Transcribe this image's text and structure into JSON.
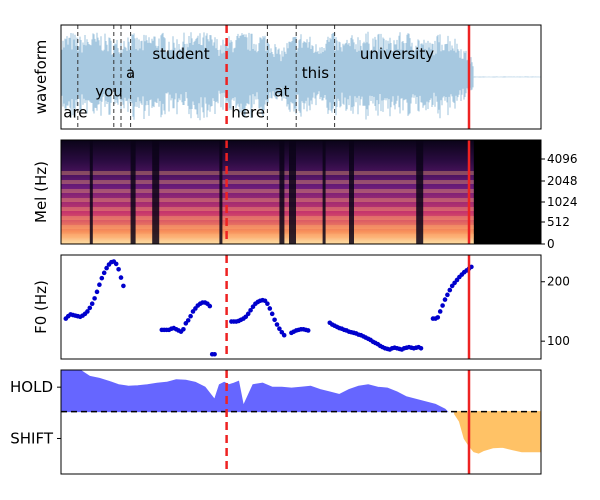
{
  "chart_data": [
    {
      "type": "area",
      "panel": "waveform",
      "ylabel": "waveform",
      "series_color": "#a6c8e0",
      "words": [
        {
          "text": "are",
          "t": 0.03
        },
        {
          "text": "you",
          "t": 0.1
        },
        {
          "text": "a",
          "t": 0.145
        },
        {
          "text": "student",
          "t": 0.25
        },
        {
          "text": "here",
          "t": 0.39
        },
        {
          "text": "at",
          "t": 0.46
        },
        {
          "text": "this",
          "t": 0.53
        },
        {
          "text": "university",
          "t": 0.7
        }
      ],
      "word_boundaries": [
        0.035,
        0.11,
        0.125,
        0.145,
        0.43,
        0.49,
        0.57
      ],
      "current_marker": 0.345,
      "end_marker": 0.85
    },
    {
      "type": "heatmap",
      "panel": "mel",
      "ylabel": "Mel (Hz)",
      "ytick_labels": [
        "0",
        "512",
        "1024",
        "2048",
        "4096"
      ],
      "speech_end": 0.86,
      "current_marker": 0.345,
      "end_marker": 0.85
    },
    {
      "type": "scatter",
      "panel": "f0",
      "ylabel": "F0 (Hz)",
      "ylim": [
        70,
        245
      ],
      "ytick_labels": [
        "100",
        "200"
      ],
      "point_color": "#0000cc",
      "segments": [
        {
          "t": [
            0.01,
            0.015,
            0.02,
            0.025,
            0.03,
            0.035,
            0.04,
            0.045,
            0.05,
            0.055,
            0.06,
            0.065,
            0.07,
            0.075,
            0.08,
            0.085,
            0.09,
            0.095,
            0.1,
            0.105,
            0.11,
            0.115,
            0.12,
            0.125,
            0.13
          ],
          "f0": [
            138,
            142,
            145,
            144,
            143,
            142,
            141,
            143,
            146,
            150,
            156,
            163,
            172,
            183,
            195,
            206,
            215,
            223,
            229,
            233,
            234,
            230,
            221,
            207,
            193
          ]
        },
        {
          "t": [
            0.21,
            0.215,
            0.22,
            0.225,
            0.23,
            0.235,
            0.24,
            0.245,
            0.25,
            0.255,
            0.26,
            0.265,
            0.27,
            0.275,
            0.28,
            0.285,
            0.29,
            0.295,
            0.3,
            0.305,
            0.31,
            0.315,
            0.32
          ],
          "f0": [
            119,
            119,
            119,
            119,
            121,
            122,
            120,
            118,
            116,
            120,
            130,
            135,
            142,
            150,
            155,
            160,
            163,
            165,
            165,
            163,
            159,
            78,
            78
          ]
        },
        {
          "t": [
            0.355,
            0.36,
            0.365,
            0.37,
            0.375,
            0.38,
            0.385,
            0.39,
            0.395,
            0.4,
            0.405,
            0.41,
            0.415,
            0.42,
            0.425,
            0.43,
            0.435,
            0.44,
            0.445,
            0.45,
            0.455,
            0.46,
            0.465
          ],
          "f0": [
            133,
            133,
            133,
            134,
            136,
            138,
            141,
            146,
            152,
            158,
            163,
            166,
            168,
            169,
            168,
            163,
            155,
            146,
            136,
            128,
            121,
            115,
            110
          ]
        },
        {
          "t": [
            0.48,
            0.485,
            0.49,
            0.495,
            0.5,
            0.505,
            0.51,
            0.515
          ],
          "f0": [
            114,
            116,
            118,
            119,
            120,
            120,
            119,
            118
          ]
        },
        {
          "t": [
            0.56,
            0.565,
            0.57,
            0.575,
            0.58,
            0.585,
            0.59,
            0.595,
            0.6,
            0.605,
            0.61,
            0.615,
            0.62,
            0.625,
            0.63,
            0.635,
            0.64,
            0.645,
            0.65,
            0.655,
            0.66,
            0.665,
            0.67,
            0.675,
            0.68,
            0.685,
            0.69,
            0.695,
            0.7,
            0.705,
            0.71,
            0.715,
            0.72,
            0.725,
            0.73,
            0.735,
            0.74,
            0.745,
            0.75
          ],
          "f0": [
            131,
            128,
            126,
            124,
            122,
            121,
            119,
            118,
            116,
            115,
            114,
            113,
            111,
            110,
            108,
            106,
            104,
            102,
            99,
            97,
            95,
            92,
            90,
            88,
            87,
            86,
            88,
            89,
            88,
            87,
            86,
            88,
            89,
            90,
            89,
            88,
            89,
            90,
            88
          ]
        },
        {
          "t": [
            0.775,
            0.78,
            0.785,
            0.79,
            0.795,
            0.8,
            0.805,
            0.81,
            0.815,
            0.82,
            0.825,
            0.83,
            0.835,
            0.84,
            0.845,
            0.85,
            0.855
          ],
          "f0": [
            138,
            138,
            140,
            150,
            160,
            170,
            178,
            186,
            193,
            198,
            203,
            208,
            212,
            216,
            219,
            222,
            225
          ]
        }
      ],
      "current_marker": 0.345,
      "end_marker": 0.85
    },
    {
      "type": "area",
      "panel": "turn",
      "ytick_labels": [
        "HOLD",
        "SHIFT"
      ],
      "threshold": 0,
      "ylim": [
        -1,
        1
      ],
      "hold_color": "#6666ff",
      "shift_color": "#ffc266",
      "hold": {
        "t": [
          0.0,
          0.02,
          0.04,
          0.06,
          0.08,
          0.1,
          0.12,
          0.14,
          0.16,
          0.18,
          0.2,
          0.22,
          0.24,
          0.26,
          0.28,
          0.3,
          0.32,
          0.33,
          0.34,
          0.35,
          0.36,
          0.37,
          0.38,
          0.4,
          0.42,
          0.44,
          0.46,
          0.48,
          0.5,
          0.52,
          0.54,
          0.56,
          0.58,
          0.6,
          0.62,
          0.64,
          0.66,
          0.68,
          0.7,
          0.72,
          0.74,
          0.76,
          0.78,
          0.8,
          0.805
        ],
        "v": [
          0.85,
          0.92,
          0.85,
          0.72,
          0.68,
          0.62,
          0.55,
          0.52,
          0.53,
          0.55,
          0.58,
          0.6,
          0.65,
          0.64,
          0.6,
          0.5,
          0.25,
          0.55,
          0.6,
          0.55,
          0.58,
          0.62,
          0.12,
          0.55,
          0.58,
          0.5,
          0.5,
          0.48,
          0.5,
          0.52,
          0.45,
          0.4,
          0.35,
          0.45,
          0.52,
          0.55,
          0.5,
          0.48,
          0.4,
          0.3,
          0.25,
          0.2,
          0.15,
          0.05,
          0.0
        ]
      },
      "shift": {
        "t": [
          0.82,
          0.83,
          0.84,
          0.85,
          0.86,
          0.87,
          0.88,
          0.9,
          0.92,
          0.94,
          0.96,
          0.98,
          1.0
        ],
        "v": [
          -0.05,
          -0.2,
          -0.55,
          -0.7,
          -0.82,
          -0.85,
          -0.8,
          -0.74,
          -0.73,
          -0.78,
          -0.82,
          -0.82,
          -0.82
        ]
      },
      "current_marker": 0.345,
      "end_marker": 0.85
    }
  ]
}
